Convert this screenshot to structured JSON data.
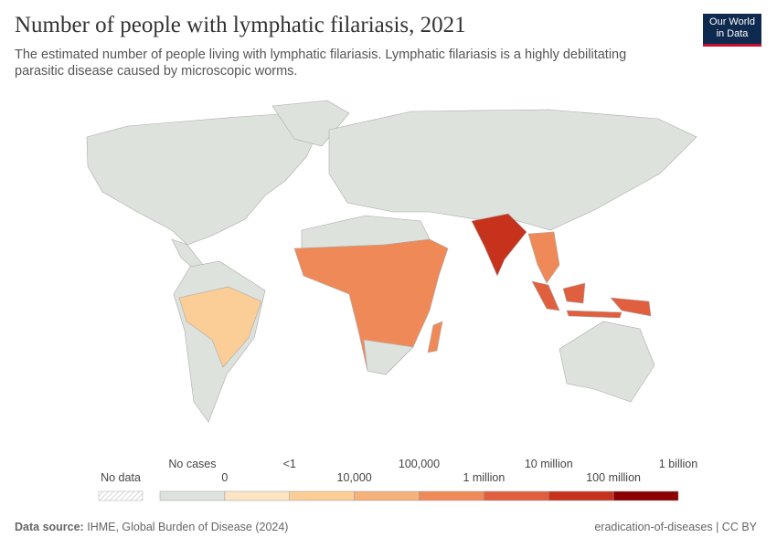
{
  "header": {
    "title": "Number of people with lymphatic filariasis, 2021",
    "subtitle_lines": [
      "The estimated number of people living with lymphatic filariasis. Lymphatic filariasis is a highly debilitating",
      "parasitic disease caused by microscopic worms."
    ]
  },
  "logo": {
    "lines": [
      "Our World",
      "in Data"
    ]
  },
  "legend": {
    "no_data": "No data",
    "bins": [
      "#dde3dc",
      "#fde4c4",
      "#fbcd97",
      "#f6b27b",
      "#ef8a58",
      "#e05f3f",
      "#c7321d",
      "#8b0000"
    ],
    "labels": [
      "No cases",
      "0",
      "<1",
      "10,000",
      "100,000",
      "1 million",
      "10 million",
      "100 million",
      "1 billion"
    ]
  },
  "footer": {
    "source_label": "Data source:",
    "source": "IHME, Global Burden of Disease (2024)",
    "credit": "eradication-of-diseases | CC BY"
  }
}
